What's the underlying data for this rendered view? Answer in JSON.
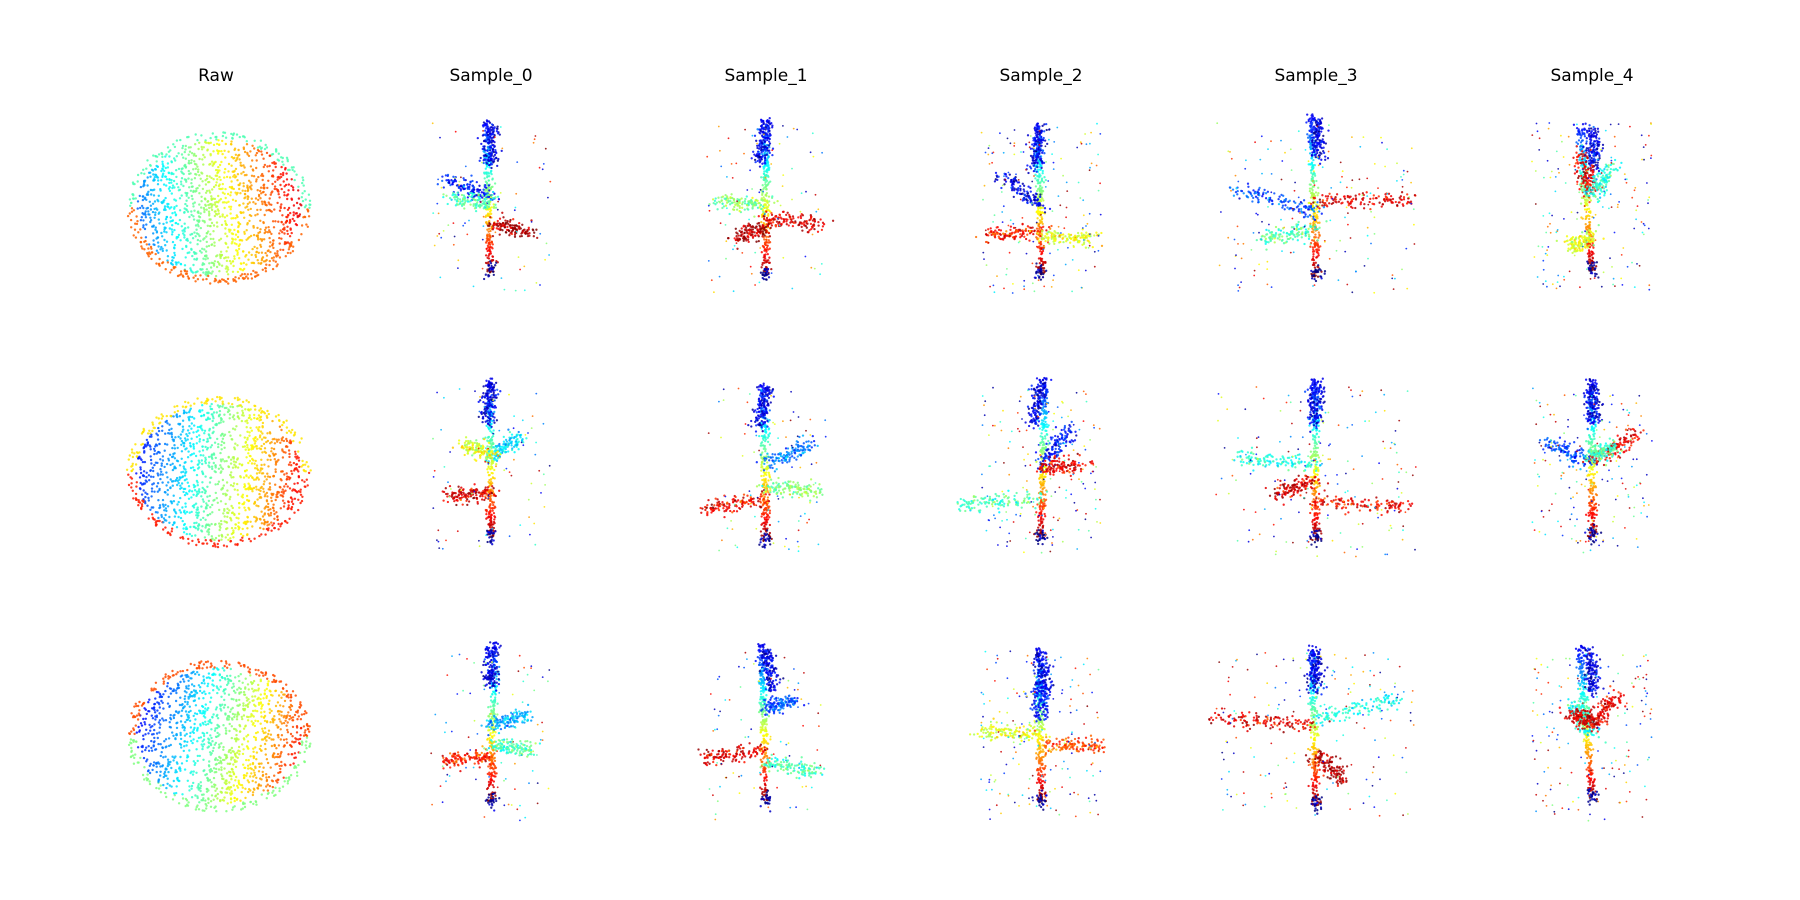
{
  "figure": {
    "columns": [
      {
        "title": "Raw"
      },
      {
        "title": "Sample_0"
      },
      {
        "title": "Sample_1"
      },
      {
        "title": "Sample_2"
      },
      {
        "title": "Sample_3"
      },
      {
        "title": "Sample_4"
      }
    ],
    "rows": 3,
    "colormap": "jet"
  }
}
